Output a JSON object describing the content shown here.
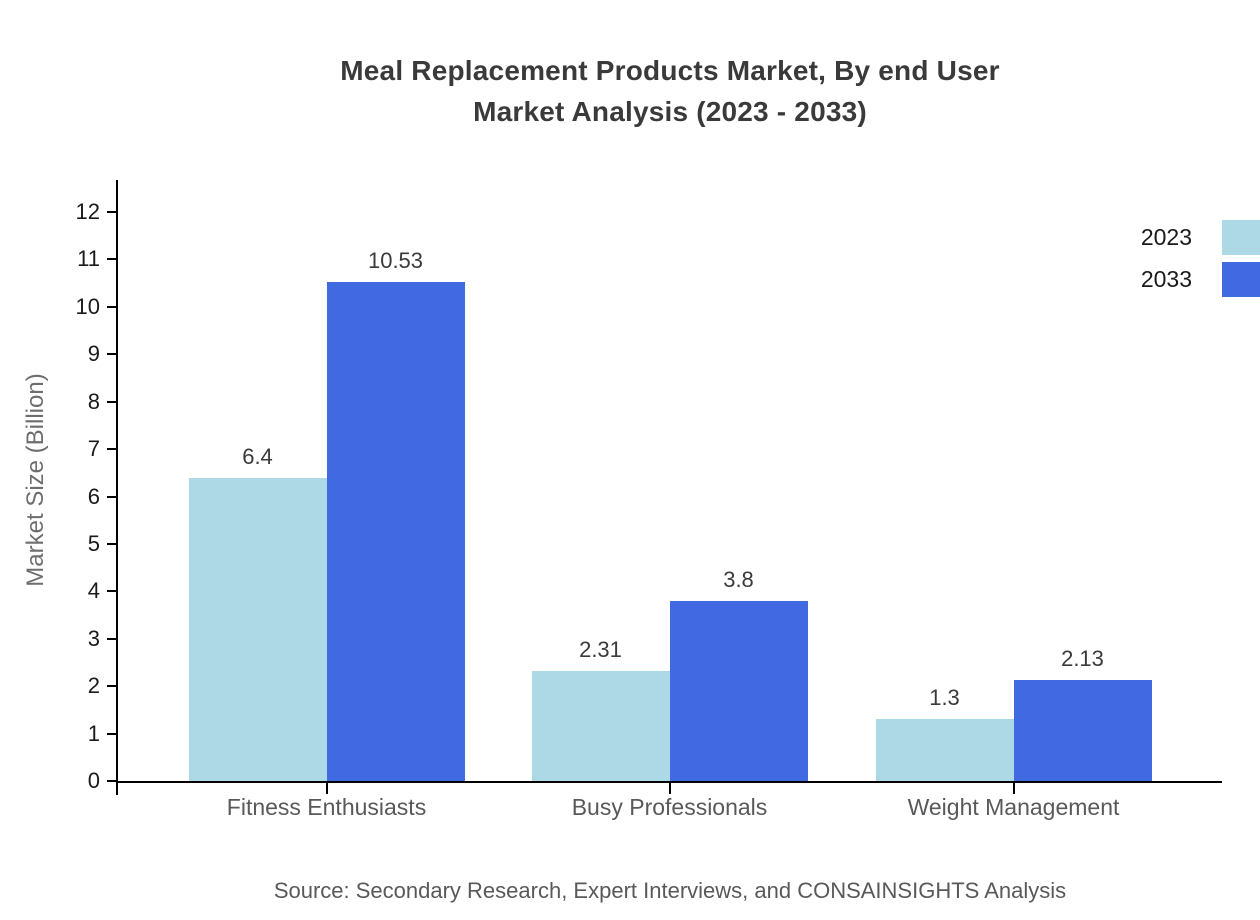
{
  "title": {
    "line1": "Meal Replacement Products Market, By end User",
    "line2": "Market Analysis (2023 - 2033)"
  },
  "source": "Source: Secondary Research, Expert Interviews, and CONSAINSIGHTS Analysis",
  "chart_data": {
    "type": "bar",
    "categories": [
      "Fitness Enthusiasts",
      "Busy Professionals",
      "Weight Management"
    ],
    "series": [
      {
        "name": "2023",
        "color": "#ADD8E6",
        "values": [
          6.4,
          2.31,
          1.3
        ]
      },
      {
        "name": "2033",
        "color": "#4169E1",
        "values": [
          10.53,
          3.8,
          2.13
        ]
      }
    ],
    "title": "Meal Replacement Products Market, By end User Market Analysis (2023 - 2033)",
    "xlabel": "",
    "ylabel": "Market Size (Billion)",
    "ylim": [
      0,
      12
    ],
    "ytick_step": 1,
    "grid": false,
    "legend_position": "top-right",
    "value_labels": true,
    "axis_color": "#000000"
  }
}
